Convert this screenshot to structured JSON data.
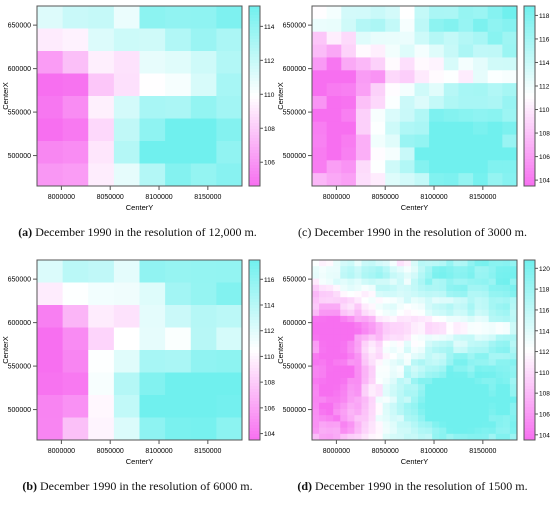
{
  "colors": {
    "low": "#f76ff0",
    "mid": "#ffffff",
    "high": "#70f0ee",
    "border": "#555555"
  },
  "chart_data": [
    {
      "type": "heatmap",
      "panel_label": "(a)",
      "caption_text": "December 1990 in the resolution of 12,000 m.",
      "xlabel": "CenterY",
      "ylabel": "CenterX",
      "xlim": [
        7975000,
        8185000
      ],
      "ylim": [
        465000,
        672000
      ],
      "x_ticks": [
        "8000000",
        "8050000",
        "8100000",
        "8150000"
      ],
      "y_ticks": [
        "500000",
        "550000",
        "600000",
        "650000"
      ],
      "colorbar_ticks": [
        "106",
        "108",
        "110",
        "112",
        "114"
      ],
      "zlim": [
        104.6,
        115.2
      ],
      "resolution_m": 12000
    },
    {
      "type": "heatmap",
      "panel_label": "(c)",
      "caption_text": "December 1990 in the resolution of 3000 m.",
      "xlabel": "CenterY",
      "ylabel": "CenterX",
      "xlim": [
        7975000,
        8185000
      ],
      "ylim": [
        465000,
        672000
      ],
      "x_ticks": [
        "8000000",
        "8050000",
        "8100000",
        "8150000"
      ],
      "y_ticks": [
        "500000",
        "550000",
        "600000",
        "650000"
      ],
      "colorbar_ticks": [
        "104",
        "106",
        "108",
        "110",
        "112",
        "114",
        "116",
        "118"
      ],
      "zlim": [
        103.5,
        118.8
      ],
      "resolution_m": 3000
    },
    {
      "type": "heatmap",
      "panel_label": "(b)",
      "caption_text": "December 1990 in the resolution of 6000 m.",
      "xlabel": "CenterY",
      "ylabel": "CenterX",
      "xlim": [
        7975000,
        8185000
      ],
      "ylim": [
        465000,
        672000
      ],
      "x_ticks": [
        "8000000",
        "8050000",
        "8100000",
        "8150000"
      ],
      "y_ticks": [
        "500000",
        "550000",
        "600000",
        "650000"
      ],
      "colorbar_ticks": [
        "104",
        "106",
        "108",
        "110",
        "112",
        "114",
        "116"
      ],
      "zlim": [
        103.5,
        117.5
      ],
      "resolution_m": 6000
    },
    {
      "type": "heatmap",
      "panel_label": "(d)",
      "caption_text": "December 1990 in the resolution of 1500 m.",
      "xlabel": "CenterY",
      "ylabel": "CenterX",
      "xlim": [
        7975000,
        8185000
      ],
      "ylim": [
        465000,
        672000
      ],
      "x_ticks": [
        "8000000",
        "8050000",
        "8100000",
        "8150000"
      ],
      "y_ticks": [
        "500000",
        "550000",
        "600000",
        "650000"
      ],
      "colorbar_ticks": [
        "104",
        "106",
        "108",
        "110",
        "112",
        "114",
        "116",
        "118",
        "120"
      ],
      "zlim": [
        103.5,
        120.8
      ],
      "resolution_m": 1500
    }
  ]
}
